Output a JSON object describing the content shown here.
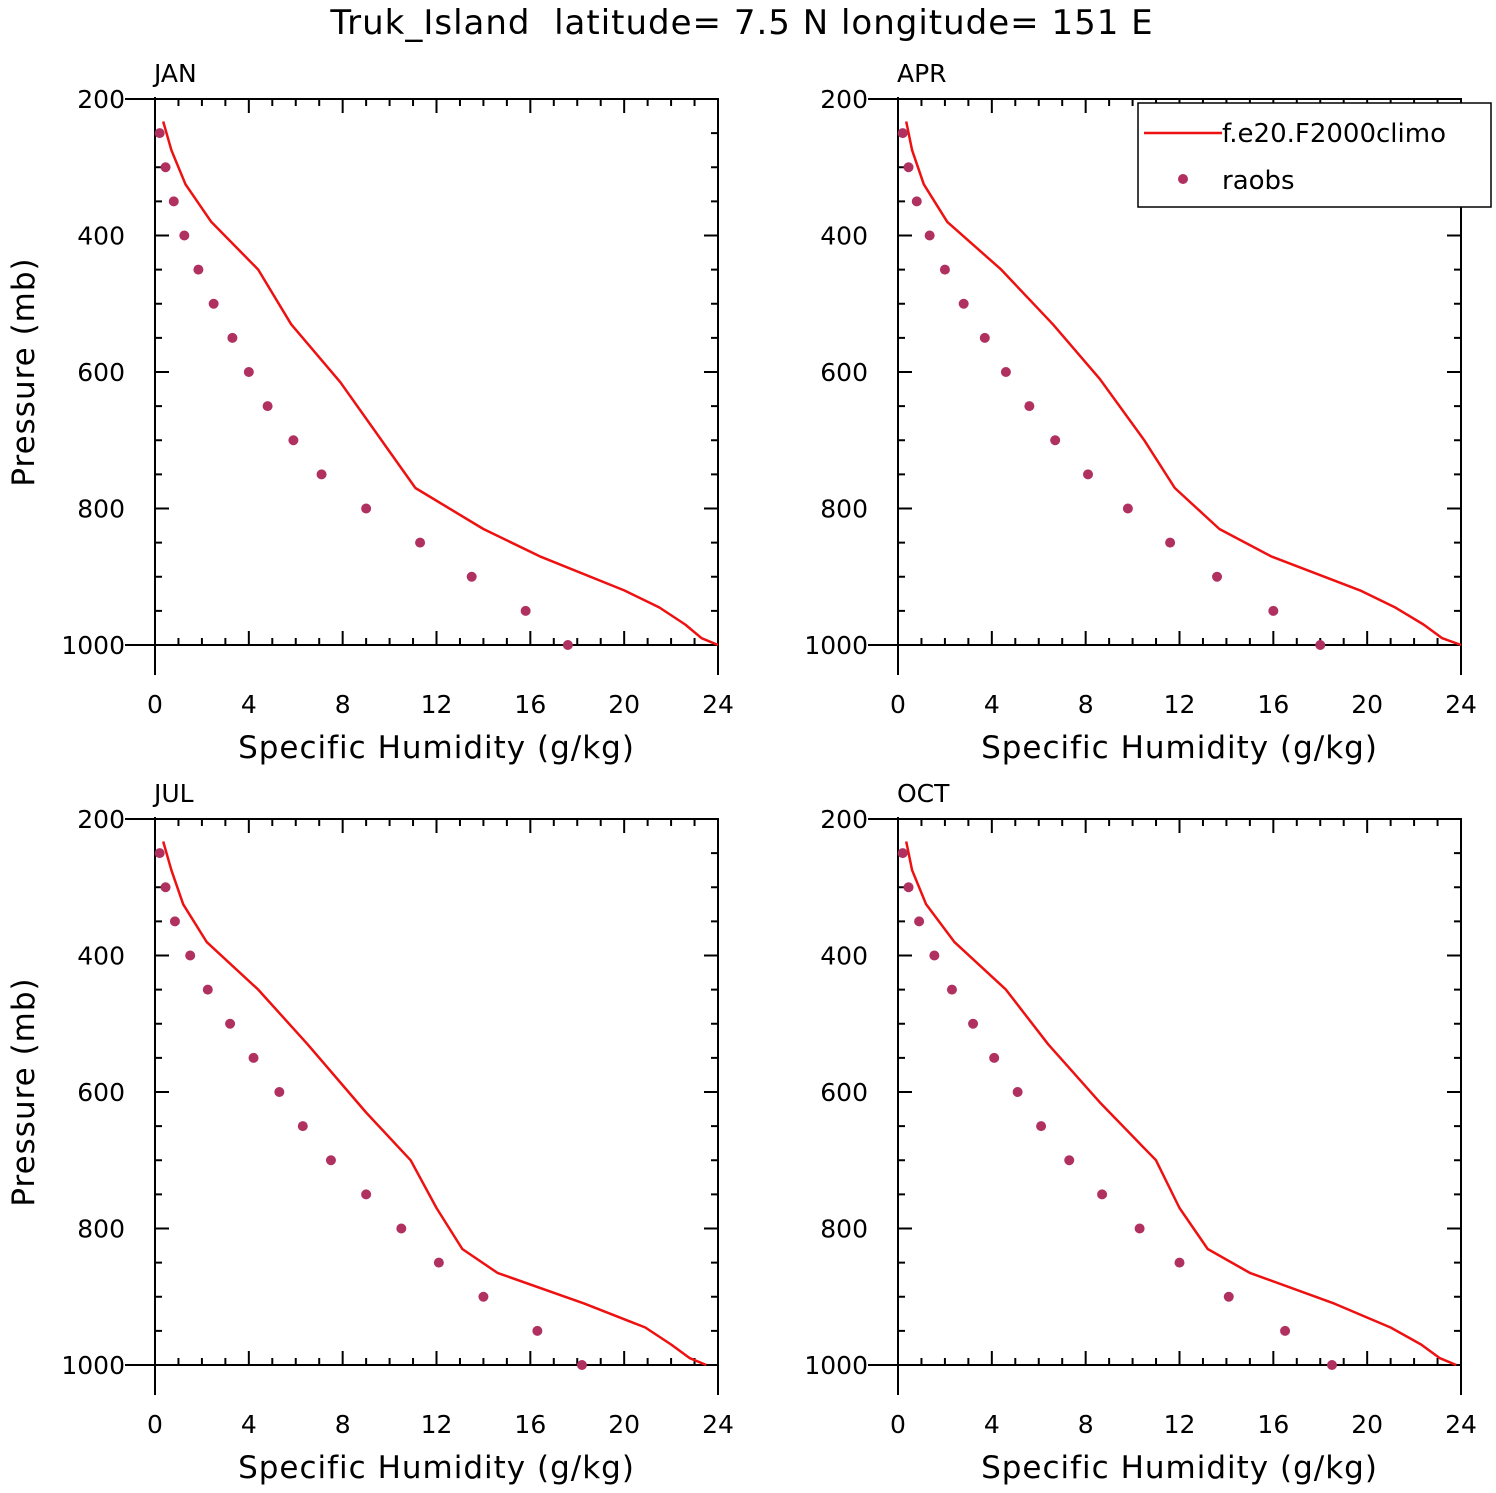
{
  "figure": {
    "title": "Truk_Island  latitude= 7.5 N longitude= 151 E",
    "legend": {
      "model_label": "f.e20.F2000climo",
      "obs_label": "raobs",
      "placement": "top-right of APR panel"
    },
    "colors": {
      "model": "#ee1111",
      "obs": "#b03060",
      "axes": "#000000"
    }
  },
  "chart_data": [
    {
      "type": "line",
      "panel_label": "JAN",
      "xlabel": "Specific Humidity (g/kg)",
      "ylabel": "Pressure (mb)",
      "xlim": [
        0,
        24
      ],
      "ylim": [
        1000,
        200
      ],
      "y_inverted": true,
      "xticks": [
        "0",
        "4",
        "8",
        "12",
        "16",
        "20",
        "24"
      ],
      "yticks": [
        "200",
        "400",
        "600",
        "800",
        "1000"
      ],
      "series": [
        {
          "name": "f.e20.F2000climo",
          "kind": "line",
          "x": [
            0.35,
            0.7,
            1.3,
            2.4,
            4.4,
            5.8,
            7.9,
            11.1,
            14.0,
            16.4,
            20.0,
            21.5,
            22.6,
            23.3,
            24.0
          ],
          "y": [
            233,
            275,
            325,
            380,
            450,
            530,
            615,
            770,
            830,
            870,
            920,
            945,
            970,
            990,
            1000
          ]
        },
        {
          "name": "raobs",
          "kind": "scatter",
          "x": [
            0.2,
            0.45,
            0.8,
            1.25,
            1.85,
            2.5,
            3.3,
            4.0,
            4.8,
            5.9,
            7.1,
            9.0,
            11.3,
            13.5,
            15.8,
            17.6
          ],
          "y": [
            250,
            300,
            350,
            400,
            450,
            500,
            550,
            600,
            650,
            700,
            750,
            800,
            850,
            900,
            950,
            1000
          ]
        }
      ]
    },
    {
      "type": "line",
      "panel_label": "APR",
      "xlabel": "Specific Humidity (g/kg)",
      "ylabel": "",
      "xlim": [
        0,
        24
      ],
      "ylim": [
        1000,
        200
      ],
      "y_inverted": true,
      "xticks": [
        "0",
        "4",
        "8",
        "12",
        "16",
        "20",
        "24"
      ],
      "yticks": [
        "200",
        "400",
        "600",
        "800",
        "1000"
      ],
      "series": [
        {
          "name": "f.e20.F2000climo",
          "kind": "line",
          "x": [
            0.35,
            0.6,
            1.1,
            2.1,
            4.4,
            6.6,
            8.6,
            10.5,
            11.8,
            13.7,
            15.9,
            19.7,
            21.2,
            22.4,
            23.2,
            24.0
          ],
          "y": [
            233,
            275,
            325,
            380,
            450,
            530,
            610,
            700,
            770,
            830,
            870,
            920,
            945,
            970,
            990,
            1000
          ]
        },
        {
          "name": "raobs",
          "kind": "scatter",
          "x": [
            0.2,
            0.45,
            0.8,
            1.35,
            2.0,
            2.8,
            3.7,
            4.6,
            5.6,
            6.7,
            8.1,
            9.8,
            11.6,
            13.6,
            16.0,
            18.0
          ],
          "y": [
            250,
            300,
            350,
            400,
            450,
            500,
            550,
            600,
            650,
            700,
            750,
            800,
            850,
            900,
            950,
            1000
          ]
        }
      ]
    },
    {
      "type": "line",
      "panel_label": "JUL",
      "xlabel": "Specific Humidity (g/kg)",
      "ylabel": "Pressure (mb)",
      "xlim": [
        0,
        24
      ],
      "ylim": [
        1000,
        200
      ],
      "y_inverted": true,
      "xticks": [
        "0",
        "4",
        "8",
        "12",
        "16",
        "20",
        "24"
      ],
      "yticks": [
        "200",
        "400",
        "600",
        "800",
        "1000"
      ],
      "series": [
        {
          "name": "f.e20.F2000climo",
          "kind": "line",
          "x": [
            0.35,
            0.7,
            1.2,
            2.2,
            4.4,
            6.5,
            9.0,
            10.9,
            12.0,
            13.1,
            14.6,
            18.3,
            20.9,
            22.0,
            22.8,
            23.5
          ],
          "y": [
            233,
            275,
            325,
            380,
            450,
            530,
            630,
            700,
            770,
            830,
            865,
            910,
            945,
            970,
            990,
            1000
          ]
        },
        {
          "name": "raobs",
          "kind": "scatter",
          "x": [
            0.2,
            0.45,
            0.85,
            1.5,
            2.25,
            3.2,
            4.2,
            5.3,
            6.3,
            7.5,
            9.0,
            10.5,
            12.1,
            14.0,
            16.3,
            18.2
          ],
          "y": [
            250,
            300,
            350,
            400,
            450,
            500,
            550,
            600,
            650,
            700,
            750,
            800,
            850,
            900,
            950,
            1000
          ]
        }
      ]
    },
    {
      "type": "line",
      "panel_label": "OCT",
      "xlabel": "Specific Humidity (g/kg)",
      "ylabel": "",
      "xlim": [
        0,
        24
      ],
      "ylim": [
        1000,
        200
      ],
      "y_inverted": true,
      "xticks": [
        "0",
        "4",
        "8",
        "12",
        "16",
        "20",
        "24"
      ],
      "yticks": [
        "200",
        "400",
        "600",
        "800",
        "1000"
      ],
      "series": [
        {
          "name": "f.e20.F2000climo",
          "kind": "line",
          "x": [
            0.35,
            0.6,
            1.2,
            2.4,
            4.6,
            6.4,
            8.6,
            11.0,
            12.0,
            13.2,
            15.0,
            18.6,
            21.0,
            22.3,
            23.1,
            23.8
          ],
          "y": [
            233,
            275,
            325,
            380,
            450,
            530,
            615,
            700,
            770,
            830,
            865,
            910,
            945,
            970,
            990,
            1000
          ]
        },
        {
          "name": "raobs",
          "kind": "scatter",
          "x": [
            0.2,
            0.45,
            0.9,
            1.55,
            2.3,
            3.2,
            4.1,
            5.1,
            6.1,
            7.3,
            8.7,
            10.3,
            12.0,
            14.1,
            16.5,
            18.5
          ],
          "y": [
            250,
            300,
            350,
            400,
            450,
            500,
            550,
            600,
            650,
            700,
            750,
            800,
            850,
            900,
            950,
            1000
          ]
        }
      ]
    }
  ]
}
